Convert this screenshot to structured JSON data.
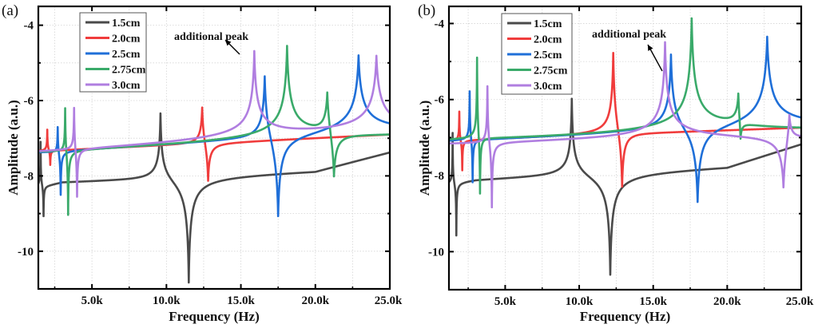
{
  "chart_data": [
    {
      "type": "line",
      "panel_label": "(a)",
      "title": "",
      "xlabel": "Frequency (Hz)",
      "ylabel": "Amplitude (a.u.)",
      "xlim": [
        1400,
        25000
      ],
      "ylim": [
        -11,
        -3.5
      ],
      "xticks": [
        5000,
        10000,
        15000,
        20000,
        25000
      ],
      "xtick_labels": [
        "5.0k",
        "10.0k",
        "15.0k",
        "20.0k",
        "25.0k"
      ],
      "yticks": [
        -4,
        -6,
        -8,
        -10
      ],
      "ytick_labels": [
        "-4",
        "-6",
        "-8",
        "-10"
      ],
      "grid": true,
      "legend": {
        "placement": "top-left",
        "entries": [
          "1.5cm",
          "2.0cm",
          "2.5cm",
          "2.75cm",
          "3.0cm"
        ]
      },
      "annotation": {
        "text": "additional peak",
        "points_to": {
          "x": 15900,
          "y": -4.9
        }
      },
      "series": [
        {
          "name": "1.5cm",
          "color": "#4a4a4a",
          "baseline": [
            [
              1400,
              -8.3
            ],
            [
              3000,
              -8.15
            ],
            [
              20000,
              -7.85
            ],
            [
              25000,
              -7.35
            ]
          ],
          "features": [
            {
              "f": 1550,
              "peak": -6.95
            },
            {
              "f": 1750,
              "dip": -9.2
            },
            {
              "f": 9600,
              "peak": -6.05
            },
            {
              "f": 11500,
              "dip": -11.0
            }
          ]
        },
        {
          "name": "2.0cm",
          "color": "#f03c3c",
          "baseline": [
            [
              1400,
              -7.35
            ],
            [
              25000,
              -6.9
            ]
          ],
          "features": [
            {
              "f": 2000,
              "peak": -6.7
            },
            {
              "f": 2200,
              "dip": -7.8
            },
            {
              "f": 12400,
              "peak": -5.75
            },
            {
              "f": 12800,
              "dip": -8.55
            }
          ]
        },
        {
          "name": "2.5cm",
          "color": "#1f6fd8",
          "baseline": [
            [
              1400,
              -7.4
            ],
            [
              25000,
              -6.9
            ]
          ],
          "features": [
            {
              "f": 2700,
              "peak": -6.5
            },
            {
              "f": 2900,
              "dip": -8.7
            },
            {
              "f": 16600,
              "peak": -4.9
            },
            {
              "f": 17500,
              "dip": -9.7
            },
            {
              "f": 22900,
              "peak": -4.75
            }
          ]
        },
        {
          "name": "2.75cm",
          "color": "#3aaa6a",
          "baseline": [
            [
              1400,
              -7.4
            ],
            [
              25000,
              -7.0
            ]
          ],
          "features": [
            {
              "f": 3200,
              "peak": -5.85
            },
            {
              "f": 3400,
              "dip": -9.4
            },
            {
              "f": 18100,
              "peak": -4.55
            },
            {
              "f": 20800,
              "peak": -5.35
            },
            {
              "f": 21250,
              "dip": -8.9
            }
          ]
        },
        {
          "name": "3.0cm",
          "color": "#b07ee0",
          "baseline": [
            [
              1400,
              -7.45
            ],
            [
              25000,
              -7.0
            ]
          ],
          "features": [
            {
              "f": 3800,
              "peak": -5.95
            },
            {
              "f": 4000,
              "dip": -9.0
            },
            {
              "f": 15900,
              "peak": -4.8
            },
            {
              "f": 24100,
              "peak": -4.9
            }
          ]
        }
      ]
    },
    {
      "type": "line",
      "panel_label": "(b)",
      "title": "",
      "xlabel": "Frequency (Hz)",
      "ylabel": "Amplitude (a.u.)",
      "xlim": [
        1200,
        25000
      ],
      "ylim": [
        -11,
        -3.55
      ],
      "xticks": [
        5000,
        10000,
        15000,
        20000,
        25000
      ],
      "xtick_labels": [
        "5.0k",
        "10.0k",
        "15.0k",
        "20.0k",
        "25.0k"
      ],
      "yticks": [
        -4,
        -6,
        -8,
        -10
      ],
      "ytick_labels": [
        "-4",
        "-6",
        "-8",
        "-10"
      ],
      "grid": true,
      "legend": {
        "placement": "top-left",
        "entries": [
          "1.5cm",
          "2.0cm",
          "2.5cm",
          "2.75cm",
          "3.0cm"
        ]
      },
      "annotation": {
        "text": "additional peak",
        "points_to": {
          "x": 15800,
          "y": -4.5
        }
      },
      "series": [
        {
          "name": "1.5cm",
          "color": "#4a4a4a",
          "baseline": [
            [
              1200,
              -8.2
            ],
            [
              3000,
              -8.1
            ],
            [
              20000,
              -7.75
            ],
            [
              25000,
              -7.15
            ]
          ],
          "features": [
            {
              "f": 1450,
              "peak": -6.7
            },
            {
              "f": 1700,
              "dip": -9.7
            },
            {
              "f": 9500,
              "peak": -5.75
            },
            {
              "f": 12100,
              "dip": -10.75
            }
          ]
        },
        {
          "name": "2.0cm",
          "color": "#f03c3c",
          "baseline": [
            [
              1200,
              -7.1
            ],
            [
              25000,
              -6.75
            ]
          ],
          "features": [
            {
              "f": 1900,
              "peak": -6.2
            },
            {
              "f": 2100,
              "dip": -8.0
            },
            {
              "f": 12300,
              "peak": -4.3
            },
            {
              "f": 12900,
              "dip": -8.9
            }
          ]
        },
        {
          "name": "2.5cm",
          "color": "#1f6fd8",
          "baseline": [
            [
              1200,
              -7.15
            ],
            [
              25000,
              -6.8
            ]
          ],
          "features": [
            {
              "f": 2600,
              "peak": -5.6
            },
            {
              "f": 2800,
              "dip": -8.5
            },
            {
              "f": 16200,
              "peak": -4.65
            },
            {
              "f": 18000,
              "dip": -9.2
            },
            {
              "f": 22700,
              "peak": -4.3
            }
          ]
        },
        {
          "name": "2.75cm",
          "color": "#3aaa6a",
          "baseline": [
            [
              1200,
              -7.15
            ],
            [
              25000,
              -6.9
            ]
          ],
          "features": [
            {
              "f": 3100,
              "peak": -4.6
            },
            {
              "f": 3300,
              "dip": -9.05
            },
            {
              "f": 17600,
              "peak": -3.9
            },
            {
              "f": 20750,
              "peak": -5.3
            },
            {
              "f": 20900,
              "dip": -8.3
            }
          ]
        },
        {
          "name": "3.0cm",
          "color": "#b07ee0",
          "baseline": [
            [
              1200,
              -7.2
            ],
            [
              25000,
              -7.0
            ]
          ],
          "features": [
            {
              "f": 3800,
              "peak": -5.35
            },
            {
              "f": 4100,
              "dip": -9.2
            },
            {
              "f": 15800,
              "peak": -4.45
            },
            {
              "f": 23800,
              "dip": -9.0
            },
            {
              "f": 24200,
              "peak": -5.65
            }
          ]
        }
      ]
    }
  ]
}
